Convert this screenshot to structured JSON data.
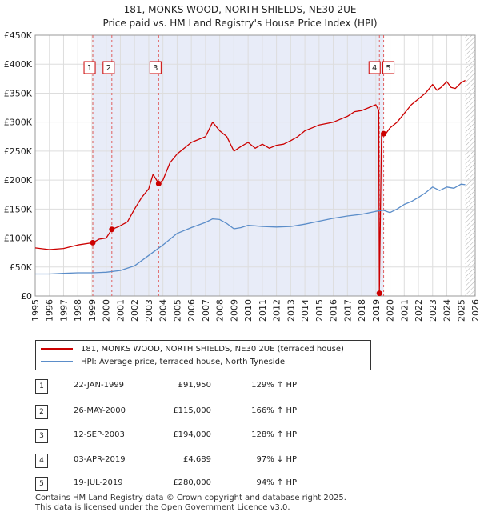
{
  "chart_data": {
    "type": "line",
    "title": "181, MONKS WOOD, NORTH SHIELDS, NE30 2UE",
    "subtitle": "Price paid vs. HM Land Registry's House Price Index (HPI)",
    "xlabel": "",
    "ylabel": "",
    "xlim": [
      1995,
      2026
    ],
    "ylim": [
      0,
      450000
    ],
    "x_ticks": [
      1995,
      1996,
      1997,
      1998,
      1999,
      2000,
      2001,
      2002,
      2003,
      2004,
      2005,
      2006,
      2007,
      2008,
      2009,
      2010,
      2011,
      2012,
      2013,
      2014,
      2015,
      2016,
      2017,
      2018,
      2019,
      2020,
      2021,
      2022,
      2023,
      2024,
      2025,
      2026
    ],
    "y_ticks": [
      {
        "value": 0,
        "label": "£0"
      },
      {
        "value": 50000,
        "label": "£50K"
      },
      {
        "value": 100000,
        "label": "£100K"
      },
      {
        "value": 150000,
        "label": "£150K"
      },
      {
        "value": 200000,
        "label": "£200K"
      },
      {
        "value": 250000,
        "label": "£250K"
      },
      {
        "value": 300000,
        "label": "£300K"
      },
      {
        "value": 350000,
        "label": "£350K"
      },
      {
        "value": 400000,
        "label": "£400K"
      },
      {
        "value": 450000,
        "label": "£450K"
      }
    ],
    "grid": true,
    "shaded_regions": [
      {
        "from": 1999.06,
        "to": 2019.55
      }
    ],
    "future_hatch_from": 2025.3,
    "series": [
      {
        "name": "181, MONKS WOOD, NORTH SHIELDS, NE30 2UE (terraced house)",
        "color": "#cc0000",
        "x": [
          1995.0,
          1996.0,
          1997.0,
          1998.0,
          1999.06,
          1999.5,
          2000.0,
          2000.4,
          2000.9,
          2001.5,
          2002.0,
          2002.5,
          2003.0,
          2003.3,
          2003.7,
          2004.0,
          2004.5,
          2005.0,
          2006.0,
          2007.0,
          2007.5,
          2008.0,
          2008.5,
          2009.0,
          2009.5,
          2010.0,
          2010.5,
          2011.0,
          2011.5,
          2012.0,
          2012.5,
          2013.0,
          2013.5,
          2014.0,
          2015.0,
          2016.0,
          2017.0,
          2017.5,
          2018.0,
          2018.5,
          2019.0,
          2019.2,
          2019.25,
          2019.4,
          2019.55,
          2019.7,
          2020.0,
          2020.5,
          2021.0,
          2021.5,
          2022.0,
          2022.5,
          2023.0,
          2023.3,
          2023.6,
          2024.0,
          2024.3,
          2024.6,
          2025.0,
          2025.3
        ],
        "y": [
          83000,
          80000,
          82000,
          88000,
          91950,
          98000,
          100000,
          115000,
          120000,
          128000,
          150000,
          170000,
          185000,
          210000,
          194000,
          200000,
          230000,
          245000,
          265000,
          275000,
          300000,
          285000,
          275000,
          250000,
          258000,
          265000,
          255000,
          262000,
          255000,
          260000,
          262000,
          268000,
          275000,
          285000,
          295000,
          300000,
          310000,
          318000,
          320000,
          325000,
          330000,
          320000,
          4689,
          280000,
          280000,
          280000,
          290000,
          300000,
          315000,
          330000,
          340000,
          350000,
          365000,
          355000,
          360000,
          370000,
          360000,
          358000,
          368000,
          372000
        ]
      },
      {
        "name": "HPI: Average price, terraced house, North Tyneside",
        "color": "#5b8dc9",
        "x": [
          1995.0,
          1996.0,
          1997.0,
          1998.0,
          1999.0,
          2000.0,
          2001.0,
          2002.0,
          2003.0,
          2004.0,
          2005.0,
          2006.0,
          2007.0,
          2007.5,
          2008.0,
          2008.5,
          2009.0,
          2009.5,
          2010.0,
          2010.5,
          2011.0,
          2012.0,
          2013.0,
          2014.0,
          2015.0,
          2016.0,
          2017.0,
          2018.0,
          2019.0,
          2019.5,
          2020.0,
          2020.5,
          2021.0,
          2021.5,
          2022.0,
          2022.5,
          2023.0,
          2023.5,
          2024.0,
          2024.5,
          2025.0,
          2025.3
        ],
        "y": [
          38000,
          38000,
          39000,
          40000,
          40000,
          41000,
          44000,
          52000,
          70000,
          88000,
          108000,
          118000,
          127000,
          133000,
          132000,
          125000,
          116000,
          118000,
          122000,
          121000,
          120000,
          119000,
          120000,
          124000,
          129000,
          134000,
          138000,
          141000,
          146000,
          148000,
          144000,
          150000,
          158000,
          163000,
          170000,
          178000,
          188000,
          182000,
          188000,
          186000,
          193000,
          192000
        ]
      }
    ],
    "transactions": [
      {
        "n": "1",
        "date": "22-JAN-1999",
        "x": 1999.06,
        "price": 91950,
        "price_label": "£91,950",
        "hpi": "129% ↑ HPI"
      },
      {
        "n": "2",
        "date": "26-MAY-2000",
        "x": 2000.4,
        "price": 115000,
        "price_label": "£115,000",
        "hpi": "166% ↑ HPI"
      },
      {
        "n": "3",
        "date": "12-SEP-2003",
        "x": 2003.7,
        "price": 194000,
        "price_label": "£194,000",
        "hpi": "128% ↑ HPI"
      },
      {
        "n": "4",
        "date": "03-APR-2019",
        "x": 2019.25,
        "price": 4689,
        "price_label": "£4,689",
        "hpi": "97% ↓ HPI"
      },
      {
        "n": "5",
        "date": "19-JUL-2019",
        "x": 2019.55,
        "price": 280000,
        "price_label": "£280,000",
        "hpi": "94% ↑ HPI"
      }
    ],
    "marker_labels_shown": [
      "1",
      "2",
      "3",
      "4",
      "5"
    ]
  },
  "legend": {
    "red_label": "181, MONKS WOOD, NORTH SHIELDS, NE30 2UE (terraced house)",
    "blue_label": "HPI: Average price, terraced house, North Tyneside"
  },
  "footer": {
    "line1": "Contains HM Land Registry data © Crown copyright and database right 2025.",
    "line2": "This data is licensed under the Open Government Licence v3.0."
  }
}
